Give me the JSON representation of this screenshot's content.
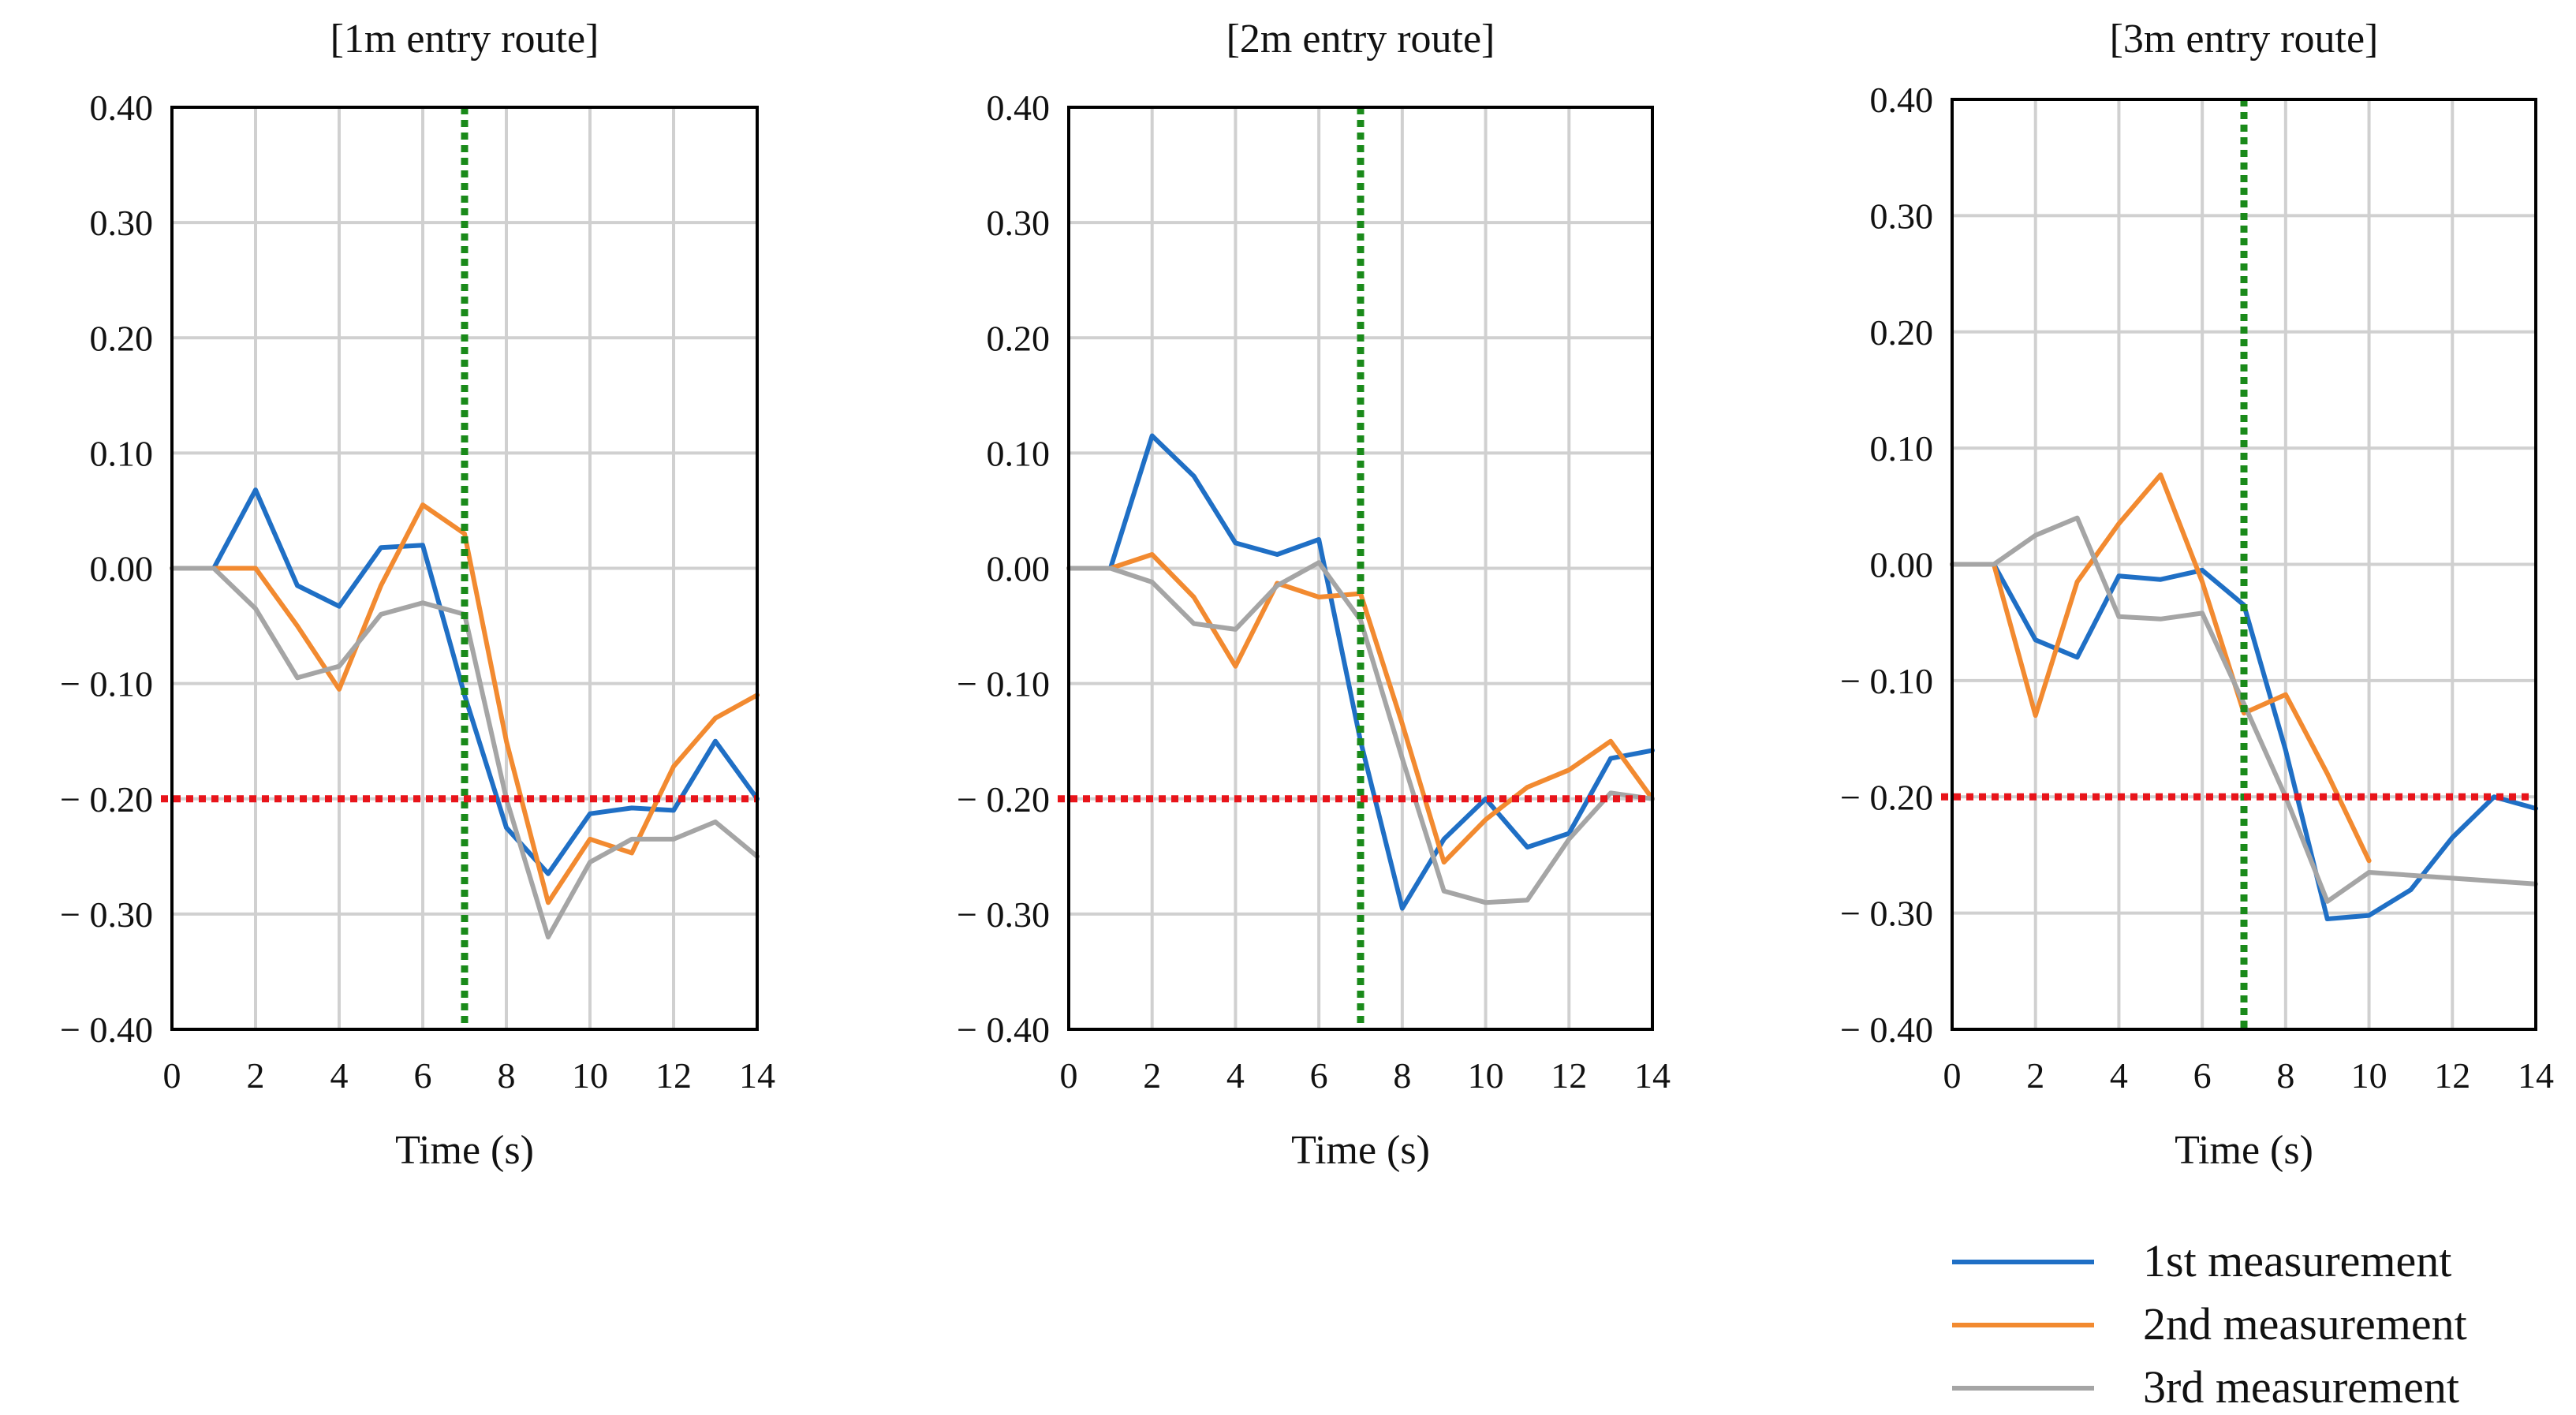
{
  "chart_data": [
    {
      "type": "line",
      "title": "[1m entry route]",
      "xlabel": "Time (s)",
      "ylabel": "",
      "xlim": [
        0,
        14
      ],
      "ylim": [
        -0.4,
        0.4
      ],
      "x_ticks": [
        "0",
        "2",
        "4",
        "6",
        "8",
        "10",
        "12",
        "14"
      ],
      "y_ticks": [
        "0.40",
        "0.30",
        "0.20",
        "0.10",
        "0.00",
        "− 0.10",
        "− 0.20",
        "− 0.30",
        "− 0.40"
      ],
      "reference_lines": {
        "vertical_x": 7,
        "horizontal_y": -0.2
      },
      "series": [
        {
          "name": "1st  measurement",
          "x": [
            0,
            1,
            2,
            3,
            4,
            5,
            6,
            7,
            8,
            9,
            10,
            11,
            12,
            13,
            14
          ],
          "values": [
            0,
            0,
            0.068,
            -0.015,
            -0.033,
            0.018,
            0.02,
            -0.11,
            -0.225,
            -0.265,
            -0.213,
            -0.208,
            -0.21,
            -0.15,
            -0.2
          ]
        },
        {
          "name": "2nd measurement",
          "x": [
            0,
            1,
            2,
            3,
            4,
            5,
            6,
            7,
            8,
            9,
            10,
            11,
            12,
            13,
            14
          ],
          "values": [
            0,
            0,
            0,
            -0.05,
            -0.105,
            -0.015,
            0.055,
            0.03,
            -0.15,
            -0.29,
            -0.235,
            -0.247,
            -0.172,
            -0.13,
            -0.11
          ]
        },
        {
          "name": "3rd measurement",
          "x": [
            0,
            1,
            2,
            3,
            4,
            5,
            6,
            7,
            8,
            9,
            10,
            11,
            12,
            13,
            14
          ],
          "values": [
            0,
            0,
            -0.035,
            -0.095,
            -0.085,
            -0.04,
            -0.03,
            -0.04,
            -0.2,
            -0.32,
            -0.255,
            -0.235,
            -0.235,
            -0.22,
            -0.25
          ]
        }
      ]
    },
    {
      "type": "line",
      "title": "[2m entry route]",
      "xlabel": "Time (s)",
      "ylabel": "",
      "xlim": [
        0,
        14
      ],
      "ylim": [
        -0.4,
        0.4
      ],
      "x_ticks": [
        "0",
        "2",
        "4",
        "6",
        "8",
        "10",
        "12",
        "14"
      ],
      "y_ticks": [
        "0.40",
        "0.30",
        "0.20",
        "0.10",
        "0.00",
        "− 0.10",
        "− 0.20",
        "− 0.30",
        "− 0.40"
      ],
      "reference_lines": {
        "vertical_x": 7,
        "horizontal_y": -0.2
      },
      "series": [
        {
          "name": "1st  measurement",
          "x": [
            0,
            1,
            2,
            3,
            4,
            5,
            6,
            7,
            8,
            9,
            10,
            11,
            12,
            13,
            14
          ],
          "values": [
            0,
            0,
            0.115,
            0.08,
            0.022,
            0.012,
            0.025,
            -0.15,
            -0.295,
            -0.235,
            -0.2,
            -0.242,
            -0.23,
            -0.165,
            -0.158
          ]
        },
        {
          "name": "2nd measurement",
          "x": [
            0,
            1,
            2,
            3,
            4,
            5,
            6,
            7,
            8,
            9,
            10,
            11,
            12,
            13,
            14
          ],
          "values": [
            0,
            0,
            0.012,
            -0.025,
            -0.085,
            -0.013,
            -0.025,
            -0.022,
            -0.135,
            -0.255,
            -0.218,
            -0.19,
            -0.175,
            -0.15,
            -0.2
          ]
        },
        {
          "name": "3rd measurement",
          "x": [
            0,
            1,
            2,
            3,
            4,
            5,
            6,
            7,
            8,
            9,
            10,
            11,
            12,
            13,
            14
          ],
          "values": [
            0,
            0,
            -0.012,
            -0.048,
            -0.053,
            -0.015,
            0.005,
            -0.045,
            -0.165,
            -0.28,
            -0.29,
            -0.288,
            -0.235,
            -0.195,
            -0.2
          ]
        }
      ]
    },
    {
      "type": "line",
      "title": "[3m entry route]",
      "xlabel": "Time (s)",
      "ylabel": "",
      "xlim": [
        0,
        14
      ],
      "ylim": [
        -0.4,
        0.4
      ],
      "x_ticks": [
        "0",
        "2",
        "4",
        "6",
        "8",
        "10",
        "12",
        "14"
      ],
      "y_ticks": [
        "0.40",
        "0.30",
        "0.20",
        "0.10",
        "0.00",
        "− 0.10",
        "− 0.20",
        "− 0.30",
        "− 0.40"
      ],
      "reference_lines": {
        "vertical_x": 7,
        "horizontal_y": -0.2
      },
      "series": [
        {
          "name": "1st  measurement",
          "x": [
            0,
            1,
            2,
            3,
            4,
            5,
            6,
            7,
            8,
            9,
            10,
            11,
            12,
            13,
            14
          ],
          "values": [
            0,
            0,
            -0.065,
            -0.08,
            -0.01,
            -0.013,
            -0.005,
            -0.035,
            -0.16,
            -0.305,
            -0.302,
            -0.28,
            -0.235,
            -0.2,
            -0.21
          ]
        },
        {
          "name": "2nd measurement",
          "x": [
            0,
            1,
            2,
            3,
            4,
            5,
            6,
            7,
            8,
            9,
            10
          ],
          "values": [
            0,
            0,
            -0.13,
            -0.015,
            0.035,
            0.077,
            -0.015,
            -0.128,
            -0.112,
            -0.18,
            -0.255
          ]
        },
        {
          "name": "3rd measurement",
          "x": [
            0,
            1,
            2,
            3,
            4,
            5,
            6,
            7,
            8,
            9,
            10,
            14
          ],
          "values": [
            0,
            0,
            0.025,
            0.04,
            -0.045,
            -0.047,
            -0.042,
            -0.12,
            -0.2,
            -0.29,
            -0.265,
            -0.275
          ]
        }
      ]
    }
  ],
  "legend": {
    "items": [
      {
        "label": "1st  measurement"
      },
      {
        "label": "2nd measurement"
      },
      {
        "label": "3rd measurement"
      }
    ]
  },
  "colors": {
    "series": [
      "#1f6fc5",
      "#f28a30",
      "#a5a5a5"
    ],
    "vertical_ref": "#1a8a1a",
    "horizontal_ref": "#e8141a",
    "grid": "#d0d0d0",
    "frame": "#000000"
  }
}
